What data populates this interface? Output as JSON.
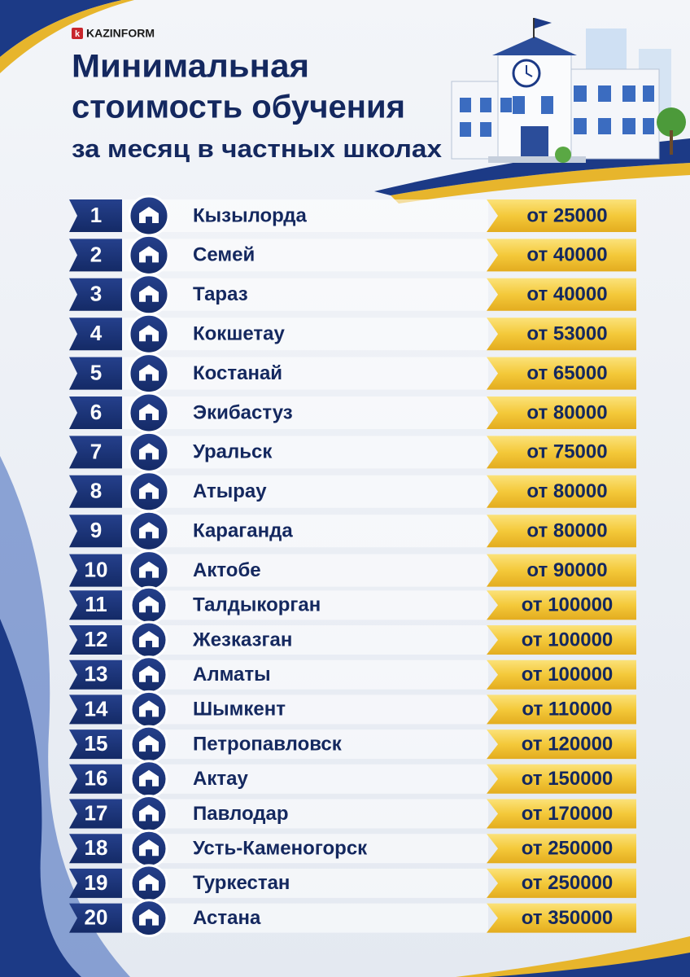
{
  "header": {
    "brand": "KAZINFORM",
    "brand_mark": "k",
    "title": [
      "Минимальная",
      "стоимость обучения",
      "за месяц в частных школах"
    ]
  },
  "rows": [
    {
      "rank": "1",
      "city": "Кызылорда",
      "price": "от 25000"
    },
    {
      "rank": "2",
      "city": "Семей",
      "price": "от 40000"
    },
    {
      "rank": "3",
      "city": "Тараз",
      "price": "от 40000"
    },
    {
      "rank": "4",
      "city": "Кокшетау",
      "price": "от 53000"
    },
    {
      "rank": "5",
      "city": "Костанай",
      "price": "от 65000"
    },
    {
      "rank": "6",
      "city": "Экибастуз",
      "price": "от 80000"
    },
    {
      "rank": "7",
      "city": "Уральск",
      "price": "от 75000"
    },
    {
      "rank": "8",
      "city": "Атырау",
      "price": "от 80000"
    },
    {
      "rank": "9",
      "city": "Караганда",
      "price": "от 80000"
    },
    {
      "rank": "10",
      "city": "Актобе",
      "price": "от 90000"
    },
    {
      "rank": "11",
      "city": "Талдыкорган",
      "price": "от 100000"
    },
    {
      "rank": "12",
      "city": "Жезказган",
      "price": "от 100000"
    },
    {
      "rank": "13",
      "city": "Алматы",
      "price": "от 100000"
    },
    {
      "rank": "14",
      "city": "Шымкент",
      "price": "от 110000"
    },
    {
      "rank": "15",
      "city": "Петропавловск",
      "price": "от 120000"
    },
    {
      "rank": "16",
      "city": "Актау",
      "price": "от 150000"
    },
    {
      "rank": "17",
      "city": "Павлодар",
      "price": "от 170000"
    },
    {
      "rank": "18",
      "city": "Усть-Каменогорск",
      "price": "от 250000"
    },
    {
      "rank": "19",
      "city": "Туркестан",
      "price": "от 250000"
    },
    {
      "rank": "20",
      "city": "Астана",
      "price": "от 350000"
    }
  ]
}
